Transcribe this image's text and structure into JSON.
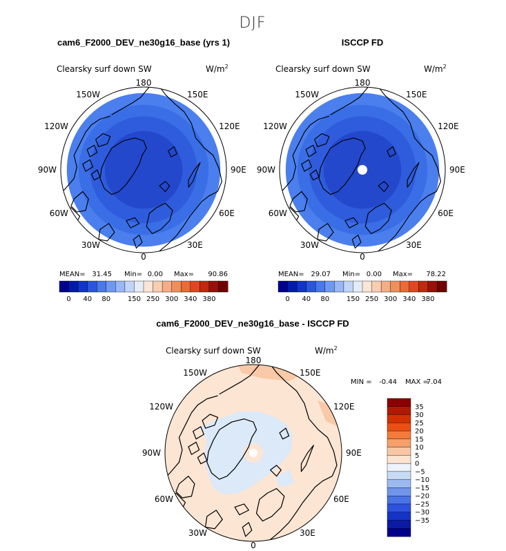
{
  "figure": {
    "season_title": "DJF",
    "difference_title": "cam6_F2000_DEV_ne30g16_base - ISCCP FD"
  },
  "chart_data": [
    {
      "type": "heatmap",
      "projection": "north-polar-stereographic",
      "title": "cam6_F2000_DEV_ne30g16_base (yrs 1)",
      "variable": "Clearsky surf down SW",
      "units": "W/m",
      "units_exponent": "2",
      "stats": {
        "mean": "31.45",
        "min": "0.00",
        "max": "90.86"
      },
      "stat_labels": {
        "mean": "MEAN=",
        "min": "Min=",
        "max": "Max="
      },
      "longitude_labels": [
        "180",
        "150E",
        "120E",
        "90E",
        "60E",
        "30E",
        "0",
        "30W",
        "60W",
        "90W",
        "120W",
        "150W"
      ],
      "field_description": "annular bands increasing equatorward",
      "rings": [
        {
          "max_lat_edge": 90,
          "color": "#1a2fb4"
        },
        {
          "max_lat_edge": 68,
          "color": "#2448cc"
        },
        {
          "max_lat_edge": 60,
          "color": "#2f5cdc"
        },
        {
          "max_lat_edge": 54,
          "color": "#3a6ee6"
        },
        {
          "max_lat_edge": 48,
          "color": "#4b7fee"
        }
      ],
      "colorbar": {
        "colors": [
          "#00008f",
          "#001aaa",
          "#1035c8",
          "#2a55dc",
          "#4a78ec",
          "#6f98f2",
          "#9ab6f5",
          "#c2d4f7",
          "#e4ecf8",
          "#fbe6d6",
          "#f8cdb0",
          "#f4ad86",
          "#f08e5c",
          "#ec6a36",
          "#e04620",
          "#c02810",
          "#98100a",
          "#720000"
        ],
        "tick_labels": [
          "0",
          "40",
          "80",
          "150",
          "250",
          "300",
          "340",
          "380"
        ]
      }
    },
    {
      "type": "heatmap",
      "projection": "north-polar-stereographic",
      "title": "ISCCP FD",
      "variable": "Clearsky surf down SW",
      "units": "W/m",
      "units_exponent": "2",
      "stats": {
        "mean": "29.07",
        "min": "0.00",
        "max": "78.22"
      },
      "stat_labels": {
        "mean": "MEAN=",
        "min": "Min=",
        "max": "Max="
      },
      "longitude_labels": [
        "180",
        "150E",
        "120E",
        "90E",
        "60E",
        "30E",
        "0",
        "30W",
        "60W",
        "90W",
        "120W",
        "150W"
      ],
      "missing_pole": true,
      "rings": [
        {
          "max_lat_edge": 90,
          "color": "#1a2fb4"
        },
        {
          "max_lat_edge": 68,
          "color": "#2448cc"
        },
        {
          "max_lat_edge": 60,
          "color": "#2f5cdc"
        },
        {
          "max_lat_edge": 54,
          "color": "#3a6ee6"
        },
        {
          "max_lat_edge": 48,
          "color": "#4b7fee"
        }
      ],
      "colorbar": {
        "colors": [
          "#00008f",
          "#001aaa",
          "#1035c8",
          "#2a55dc",
          "#4a78ec",
          "#6f98f2",
          "#9ab6f5",
          "#c2d4f7",
          "#e4ecf8",
          "#fbe6d6",
          "#f8cdb0",
          "#f4ad86",
          "#f08e5c",
          "#ec6a36",
          "#e04620",
          "#c02810",
          "#98100a",
          "#720000"
        ],
        "tick_labels": [
          "0",
          "40",
          "80",
          "150",
          "250",
          "300",
          "340",
          "380"
        ]
      }
    },
    {
      "type": "heatmap",
      "projection": "north-polar-stereographic",
      "title": "cam6_F2000_DEV_ne30g16_base - ISCCP FD",
      "variable": "Clearsky surf down SW",
      "units": "W/m",
      "units_exponent": "2",
      "stats": {
        "min": "-0.44",
        "max": "7.04"
      },
      "stat_labels": {
        "min": "MIN =",
        "max": "MAX ="
      },
      "longitude_labels": [
        "180",
        "150E",
        "120E",
        "90E",
        "60E",
        "30E",
        "0",
        "30W",
        "60W",
        "90W",
        "120W",
        "150W"
      ],
      "background_color": "#fde5d3",
      "negative_region_color": "#dbe9f9",
      "positive_patch_color": "#f9c9a8",
      "missing_pole": true,
      "colorbar": {
        "colors": [
          "#8b0000",
          "#b01a00",
          "#d23200",
          "#ec4f14",
          "#f47a3c",
          "#f6a06c",
          "#f9c6a4",
          "#fde3d0",
          "#eef3fb",
          "#c6dbf4",
          "#9cbaef",
          "#6f96ea",
          "#4a74e6",
          "#2c52de",
          "#1534c6",
          "#0a1aa4",
          "#00008b"
        ],
        "tick_labels": [
          "35",
          "30",
          "25",
          "20",
          "15",
          "10",
          "5",
          "0",
          "−5",
          "−10",
          "−15",
          "−20",
          "−25",
          "−30",
          "−35"
        ]
      }
    }
  ]
}
